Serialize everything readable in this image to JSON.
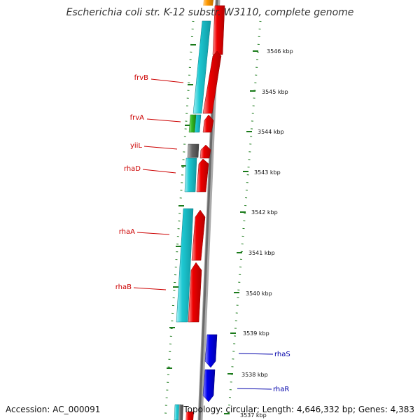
{
  "title": "Escherichia coli str. K-12 substr. W3110, complete genome",
  "accession": "Accession: AC_000091",
  "summary": "Topology: circular; Length: 4,646,332 bp; Genes: 4,383",
  "scale": {
    "unit": "kbp",
    "labels": [
      "3546 kbp",
      "3545 kbp",
      "3544 kbp",
      "3543 kbp",
      "3542 kbp",
      "3541 kbp",
      "3540 kbp",
      "3539 kbp",
      "3538 kbp",
      "3537 kbp"
    ]
  },
  "gene_labels_top": [
    {
      "name": "frvB",
      "color": "#cc0000"
    },
    {
      "name": "frvA",
      "color": "#cc0000"
    },
    {
      "name": "yiiL",
      "color": "#cc0000"
    },
    {
      "name": "rhaD",
      "color": "#cc0000"
    },
    {
      "name": "rhaA",
      "color": "#cc0000"
    },
    {
      "name": "rhaB",
      "color": "#cc0000"
    }
  ],
  "gene_labels_bottom": [
    {
      "name": "rhaS",
      "color": "#0000aa"
    },
    {
      "name": "rhaR",
      "color": "#0000aa"
    }
  ],
  "colors": {
    "cog": "#1ec8d2",
    "forward": "#ee0000",
    "reverse": "#0000ee",
    "gray": "#666666",
    "green": "#33bb22",
    "orange": "#ff9900",
    "backbone": "#888888",
    "tick": "#1a7a1a"
  }
}
